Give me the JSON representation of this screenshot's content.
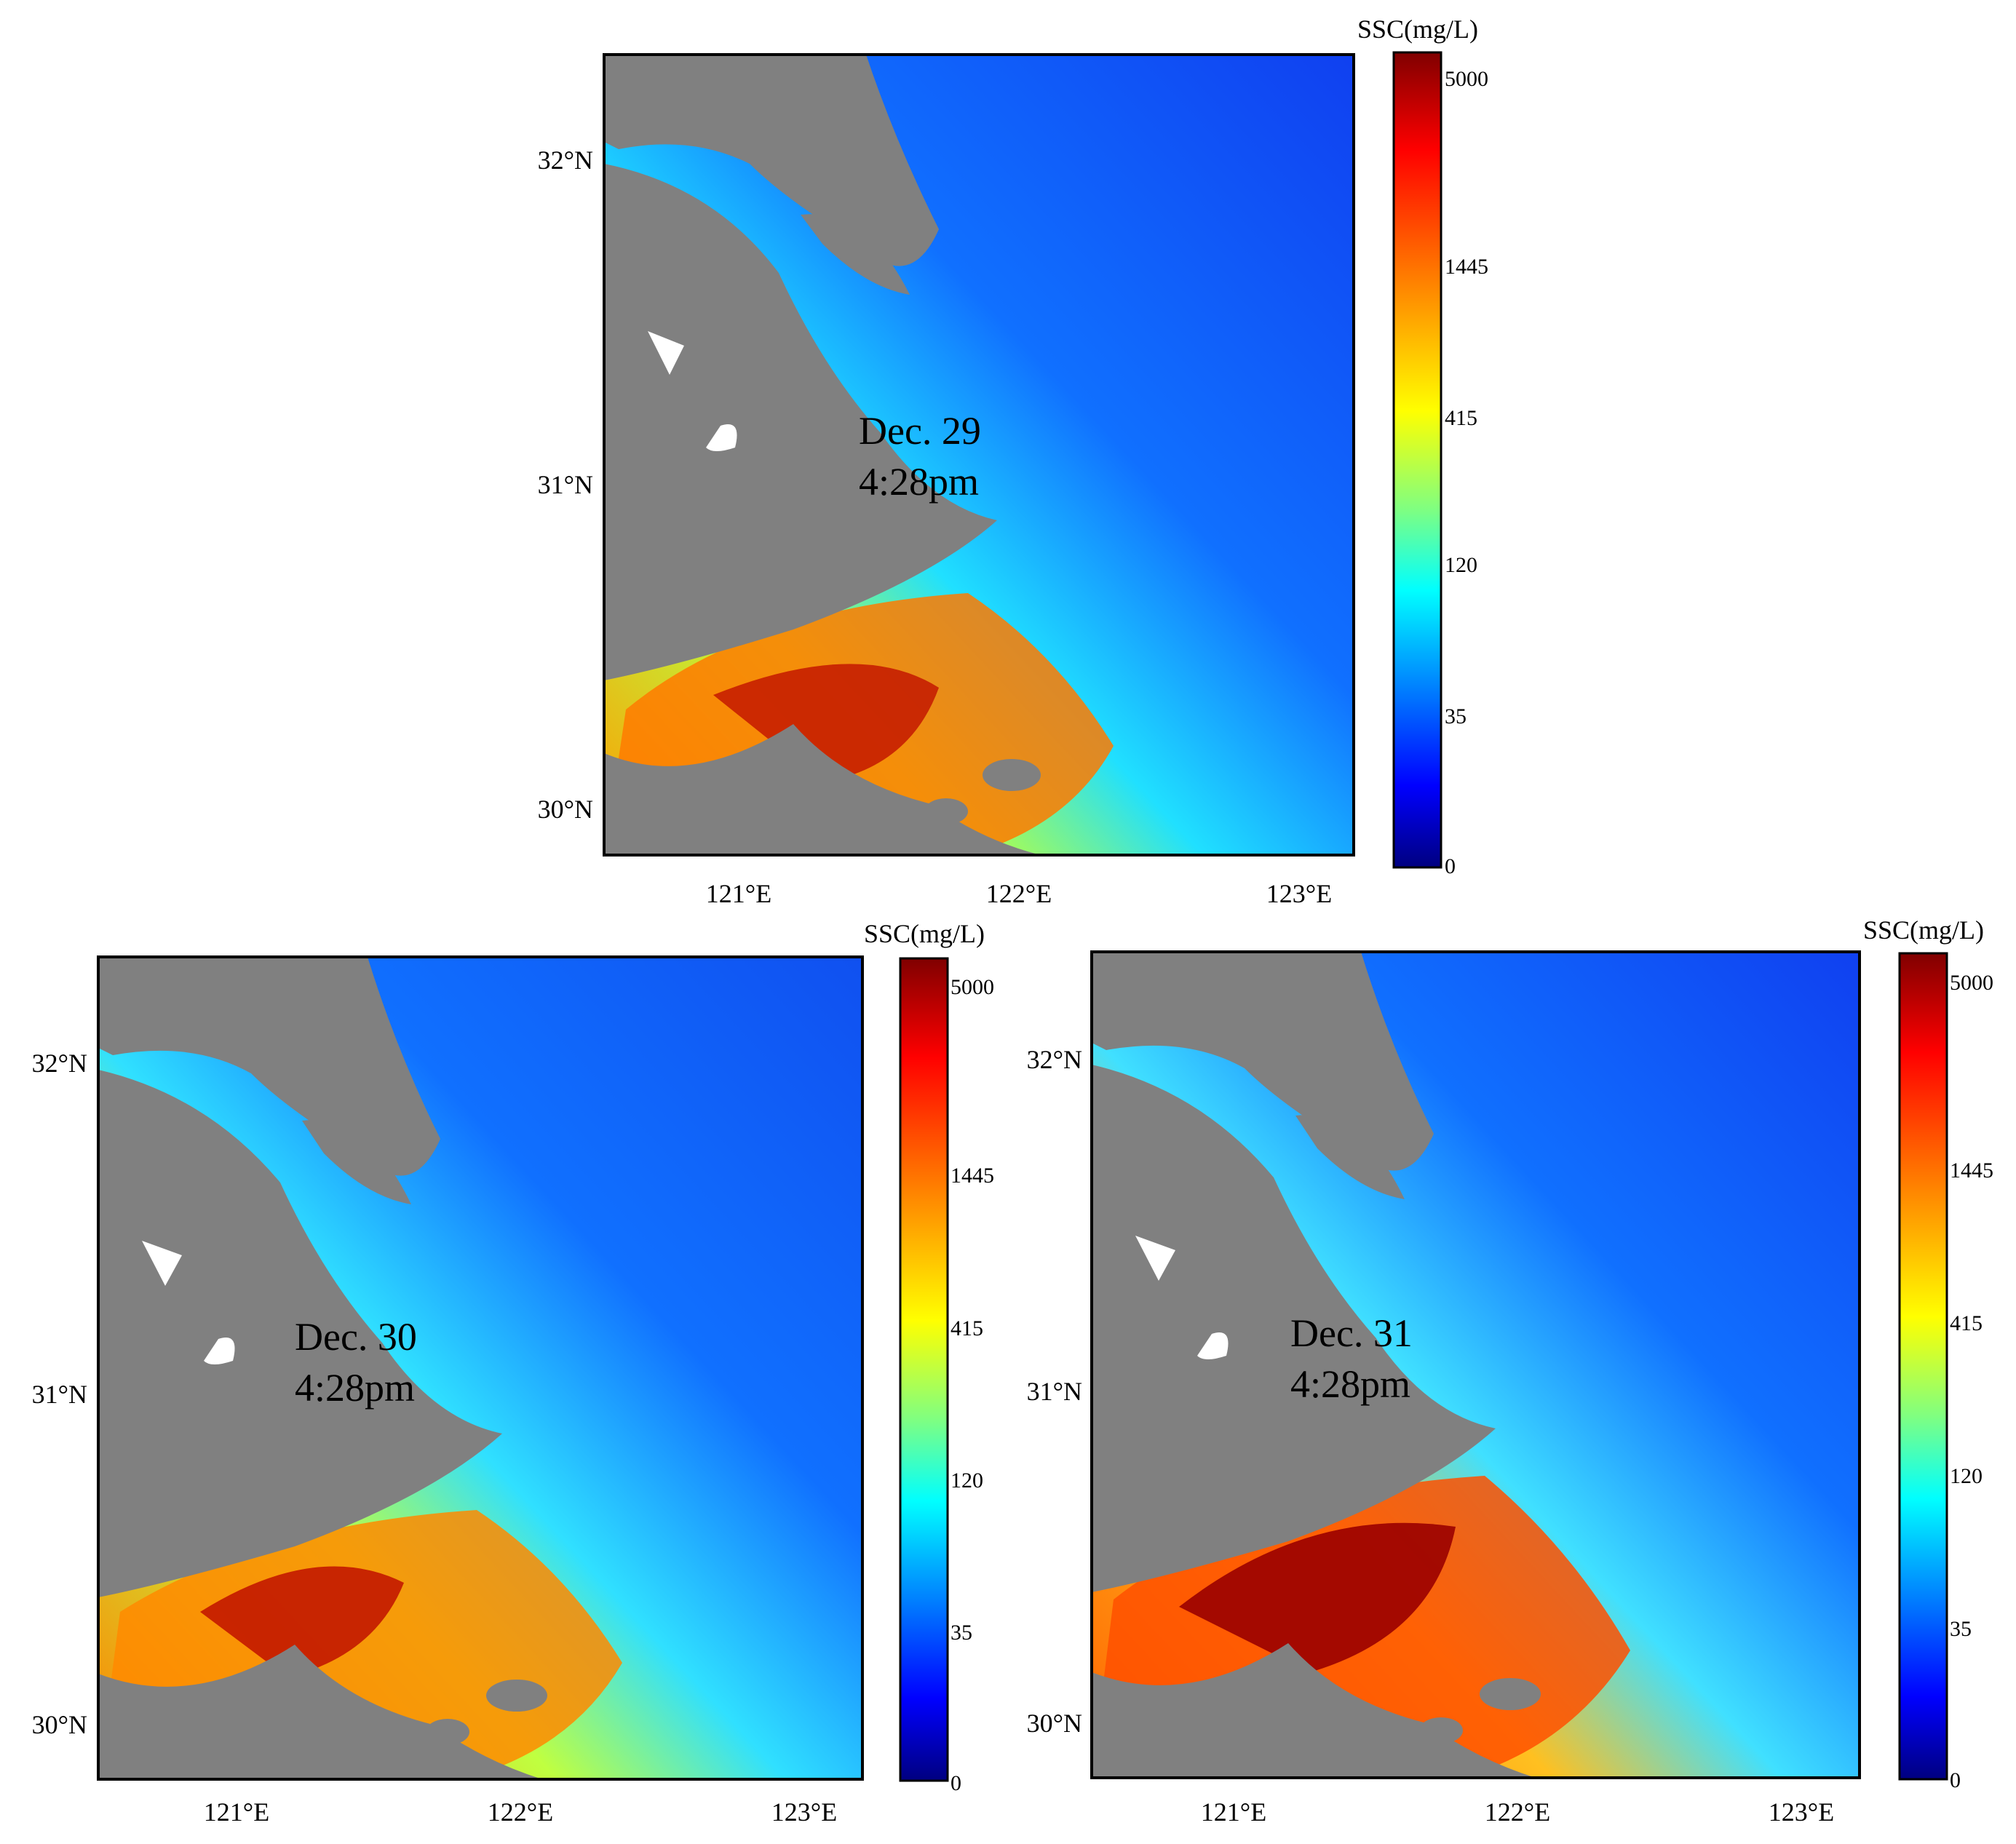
{
  "colorbar": {
    "title": "SSC(mg/L)",
    "ticks": [
      "5000",
      "1445",
      "415",
      "120",
      "35",
      "0"
    ],
    "colors": [
      "#800000",
      "#ff0000",
      "#ff8000",
      "#ffff00",
      "#80ff80",
      "#00ffff",
      "#0080ff",
      "#0000ff",
      "#000080"
    ]
  },
  "axes": {
    "lat_labels": [
      "32°N",
      "31°N",
      "30°N"
    ],
    "lon_labels": [
      "121°E",
      "122°E",
      "123°E"
    ]
  },
  "colors": {
    "land": "#808080",
    "no_data": "#ffffff",
    "frame": "#000000"
  },
  "panels": [
    {
      "date": "Dec. 29",
      "time": "4:28pm"
    },
    {
      "date": "Dec. 30",
      "time": "4:28pm"
    },
    {
      "date": "Dec. 31",
      "time": "4:28pm"
    }
  ]
}
